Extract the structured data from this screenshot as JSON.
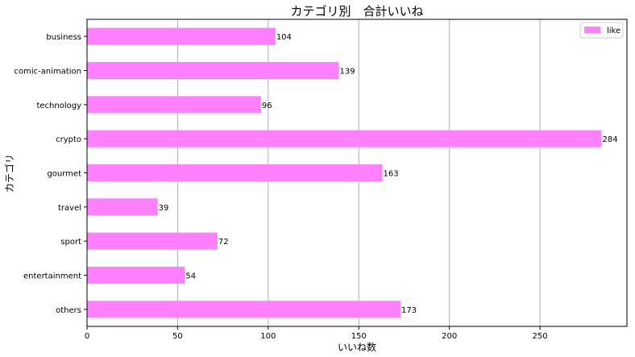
{
  "chart_data": {
    "type": "bar",
    "orientation": "horizontal",
    "title": "カテゴリ別　合計いいね",
    "xlabel": "いいね数",
    "ylabel": "カテゴリ",
    "categories": [
      "business",
      "comic-animation",
      "technology",
      "crypto",
      "gourmet",
      "travel",
      "sport",
      "entertainment",
      "others"
    ],
    "series": [
      {
        "name": "like",
        "values": [
          104,
          139,
          96,
          284,
          163,
          39,
          72,
          54,
          173
        ],
        "color": "#ff80ff"
      }
    ],
    "xlim": [
      0,
      298
    ],
    "xticks": [
      0,
      50,
      100,
      150,
      200,
      250
    ],
    "grid": "x",
    "legend": "top-right",
    "data_labels": true
  }
}
